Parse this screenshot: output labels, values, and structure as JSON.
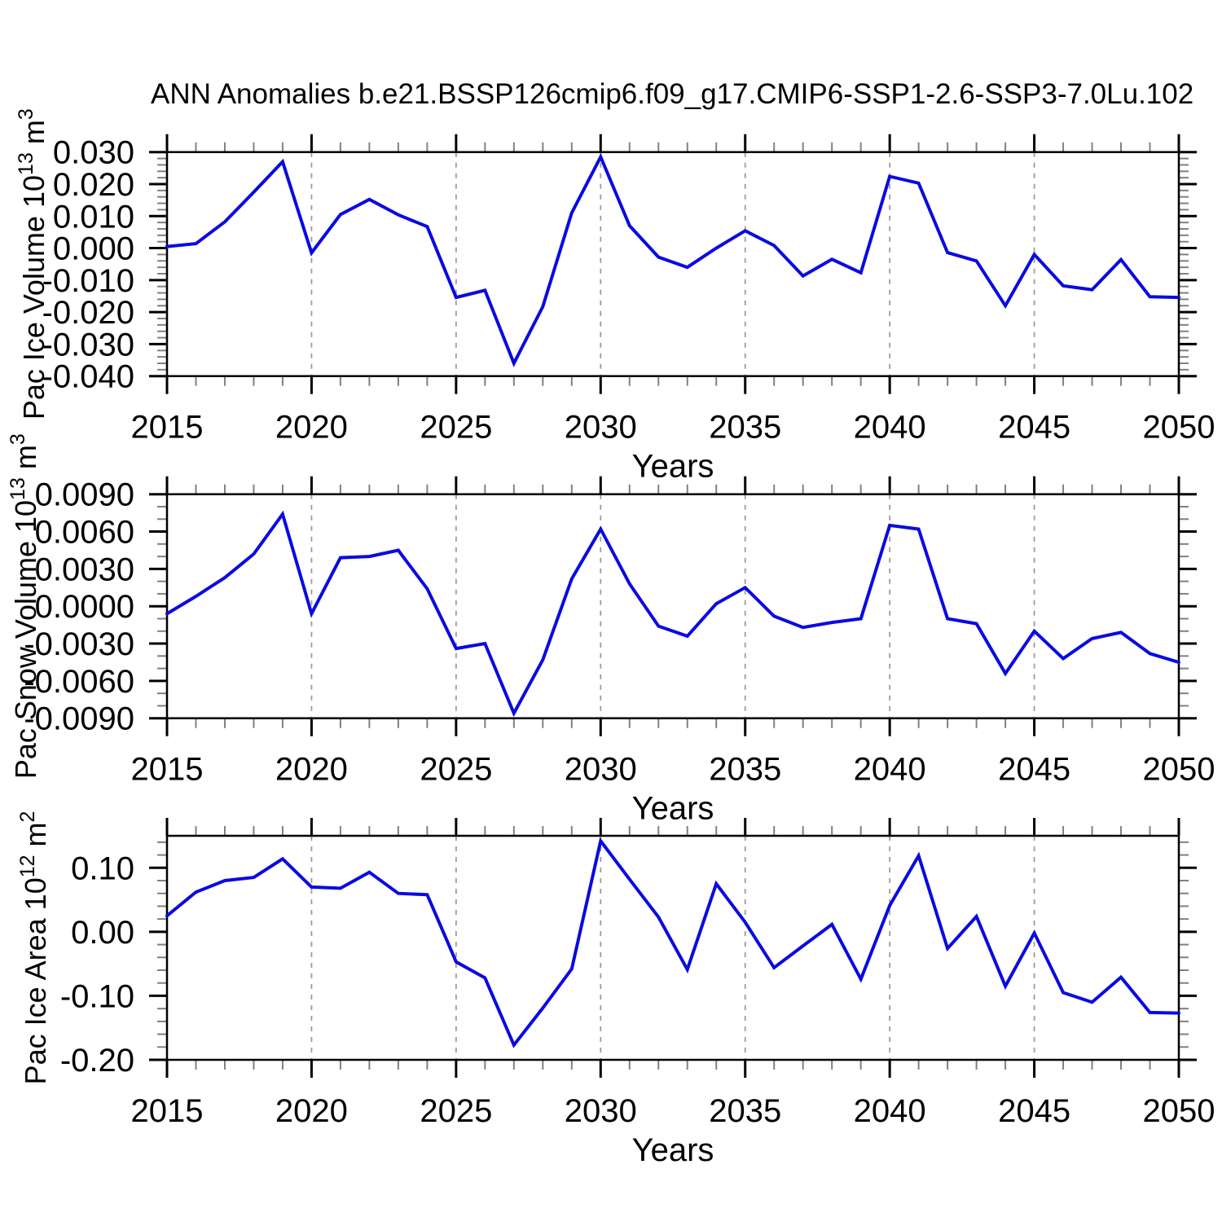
{
  "title": "ANN Anomalies b.e21.BSSP126cmip6.f09_g17.CMIP6-SSP1-2.6-SSP3-7.0Lu.102",
  "chart_data": [
    {
      "type": "line",
      "name": "pac-ice-volume",
      "line_color": "#0a0ae0",
      "xlabel": "Years",
      "ylabel_parts": [
        {
          "t": "Pac Ice Volume 10"
        },
        {
          "t": "13",
          "sup": true
        },
        {
          "t": " m"
        },
        {
          "t": "3",
          "sup": true
        }
      ],
      "xlim": [
        2015,
        2050
      ],
      "ylim": [
        -0.04,
        0.03
      ],
      "grid_on": true,
      "legend": "none",
      "xticks": [
        {
          "label": "2015",
          "value": 2015
        },
        {
          "label": "2020",
          "value": 2020
        },
        {
          "label": "2025",
          "value": 2025
        },
        {
          "label": "2030",
          "value": 2030
        },
        {
          "label": "2035",
          "value": 2035
        },
        {
          "label": "2040",
          "value": 2040
        },
        {
          "label": "2045",
          "value": 2045
        },
        {
          "label": "2050",
          "value": 2050
        }
      ],
      "xtick_minor_step": 1,
      "yticks": [
        {
          "label": "0.030",
          "value": 0.03
        },
        {
          "label": "0.020",
          "value": 0.02
        },
        {
          "label": "0.010",
          "value": 0.01
        },
        {
          "label": "0.000",
          "value": 0.0
        },
        {
          "label": "-0.010",
          "value": -0.01
        },
        {
          "label": "-0.020",
          "value": -0.02
        },
        {
          "label": "-0.030",
          "value": -0.03
        },
        {
          "label": "-0.040",
          "value": -0.04
        }
      ],
      "ytick_minor_step": 0.002,
      "grid_x": [
        2020,
        2025,
        2030,
        2035,
        2040,
        2045
      ],
      "x": [
        2015,
        2016,
        2017,
        2018,
        2019,
        2020,
        2021,
        2022,
        2023,
        2024,
        2025,
        2026,
        2027,
        2028,
        2029,
        2030,
        2031,
        2032,
        2033,
        2034,
        2035,
        2036,
        2037,
        2038,
        2039,
        2040,
        2041,
        2042,
        2043,
        2044,
        2045,
        2046,
        2047,
        2048,
        2049,
        2050
      ],
      "values": [
        0.0005,
        0.0014,
        0.0082,
        0.0175,
        0.027,
        -0.0015,
        0.0105,
        0.0152,
        0.0104,
        0.0067,
        -0.0154,
        -0.0132,
        -0.036,
        -0.0183,
        0.011,
        0.0285,
        0.007,
        -0.0028,
        -0.006,
        0.0,
        0.0054,
        0.0008,
        -0.0087,
        -0.0035,
        -0.0077,
        0.0224,
        0.0203,
        -0.0014,
        -0.004,
        -0.018,
        -0.002,
        -0.0118,
        -0.013,
        -0.0036,
        -0.0152,
        -0.0154
      ]
    },
    {
      "type": "line",
      "name": "pac-snow-volume",
      "line_color": "#0a0ae0",
      "xlabel": "Years",
      "ylabel_parts": [
        {
          "t": "Pac Snow Volume 10"
        },
        {
          "t": "13",
          "sup": true
        },
        {
          "t": " m"
        },
        {
          "t": "3",
          "sup": true
        }
      ],
      "xlim": [
        2015,
        2050
      ],
      "ylim": [
        -0.009,
        0.009
      ],
      "grid_on": true,
      "legend": "none",
      "xticks": [
        {
          "label": "2015",
          "value": 2015
        },
        {
          "label": "2020",
          "value": 2020
        },
        {
          "label": "2025",
          "value": 2025
        },
        {
          "label": "2030",
          "value": 2030
        },
        {
          "label": "2035",
          "value": 2035
        },
        {
          "label": "2040",
          "value": 2040
        },
        {
          "label": "2045",
          "value": 2045
        },
        {
          "label": "2050",
          "value": 2050
        }
      ],
      "xtick_minor_step": 1,
      "yticks": [
        {
          "label": "0.0090",
          "value": 0.009
        },
        {
          "label": "0.0060",
          "value": 0.006
        },
        {
          "label": "0.0030",
          "value": 0.003
        },
        {
          "label": "0.0000",
          "value": 0.0
        },
        {
          "label": "-0.0030",
          "value": -0.003
        },
        {
          "label": "-0.0060",
          "value": -0.006
        },
        {
          "label": "-0.0090",
          "value": -0.009
        }
      ],
      "ytick_minor_step": 0.001,
      "grid_x": [
        2020,
        2025,
        2030,
        2035,
        2040,
        2045
      ],
      "x": [
        2015,
        2016,
        2017,
        2018,
        2019,
        2020,
        2021,
        2022,
        2023,
        2024,
        2025,
        2026,
        2027,
        2028,
        2029,
        2030,
        2031,
        2032,
        2033,
        2034,
        2035,
        2036,
        2037,
        2038,
        2039,
        2040,
        2041,
        2042,
        2043,
        2044,
        2045,
        2046,
        2047,
        2048,
        2049,
        2050
      ],
      "values": [
        -0.0006,
        0.0008,
        0.0023,
        0.0042,
        0.0074,
        -0.0006,
        0.0039,
        0.004,
        0.0045,
        0.0014,
        -0.0034,
        -0.003,
        -0.0086,
        -0.0043,
        0.0022,
        0.0062,
        0.0018,
        -0.0016,
        -0.0024,
        0.0002,
        0.0015,
        -0.0008,
        -0.0017,
        -0.0013,
        -0.001,
        0.0065,
        0.0062,
        -0.001,
        -0.0014,
        -0.0054,
        -0.002,
        -0.0042,
        -0.0026,
        -0.0021,
        -0.0038,
        -0.0045
      ]
    },
    {
      "type": "line",
      "name": "pac-ice-area",
      "line_color": "#0a0ae0",
      "xlabel": "Years",
      "ylabel_parts": [
        {
          "t": "Pac Ice Area 10"
        },
        {
          "t": "12",
          "sup": true
        },
        {
          "t": " m"
        },
        {
          "t": "2",
          "sup": true
        }
      ],
      "xlim": [
        2015,
        2050
      ],
      "ylim": [
        -0.2,
        0.15
      ],
      "grid_on": true,
      "legend": "none",
      "xticks": [
        {
          "label": "2015",
          "value": 2015
        },
        {
          "label": "2020",
          "value": 2020
        },
        {
          "label": "2025",
          "value": 2025
        },
        {
          "label": "2030",
          "value": 2030
        },
        {
          "label": "2035",
          "value": 2035
        },
        {
          "label": "2040",
          "value": 2040
        },
        {
          "label": "2045",
          "value": 2045
        },
        {
          "label": "2050",
          "value": 2050
        }
      ],
      "xtick_minor_step": 1,
      "yticks": [
        {
          "label": "0.10",
          "value": 0.1
        },
        {
          "label": "0.00",
          "value": 0.0
        },
        {
          "label": "-0.10",
          "value": -0.1
        },
        {
          "label": "-0.20",
          "value": -0.2
        }
      ],
      "ytick_minor_step": 0.02,
      "grid_x": [
        2020,
        2025,
        2030,
        2035,
        2040,
        2045
      ],
      "x": [
        2015,
        2016,
        2017,
        2018,
        2019,
        2020,
        2021,
        2022,
        2023,
        2024,
        2025,
        2026,
        2027,
        2028,
        2029,
        2030,
        2031,
        2032,
        2033,
        2034,
        2035,
        2036,
        2037,
        2038,
        2039,
        2040,
        2041,
        2042,
        2043,
        2044,
        2045,
        2046,
        2047,
        2048,
        2049,
        2050
      ],
      "values": [
        0.025,
        0.062,
        0.08,
        0.085,
        0.114,
        0.07,
        0.068,
        0.093,
        0.06,
        0.058,
        -0.047,
        -0.072,
        -0.177,
        -0.119,
        -0.058,
        0.142,
        0.082,
        0.023,
        -0.059,
        0.075,
        0.015,
        -0.056,
        -0.022,
        0.0115,
        -0.074,
        0.041,
        0.119,
        -0.026,
        0.024,
        -0.085,
        -0.002,
        -0.095,
        -0.11,
        -0.071,
        -0.126,
        -0.127
      ]
    }
  ]
}
